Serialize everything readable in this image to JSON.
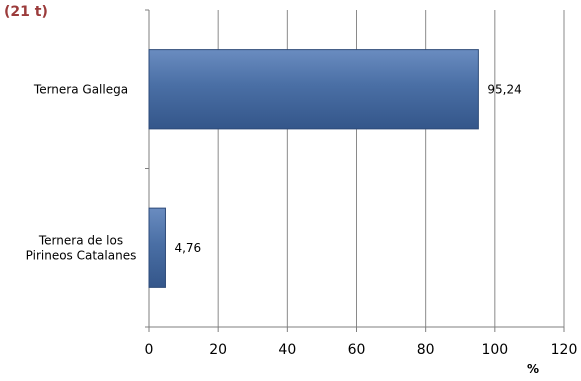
{
  "chart_data": {
    "type": "bar",
    "orientation": "horizontal",
    "title_fragment": "(21 t)",
    "categories": [
      "Ternera Gallega",
      "Ternera de los Pirineos Catalanes"
    ],
    "category_lines": [
      [
        "Ternera Gallega"
      ],
      [
        "Ternera de los",
        "Pirineos Catalanes"
      ]
    ],
    "values": [
      95.24,
      4.76
    ],
    "value_labels": [
      "95,24",
      "4,76"
    ],
    "xlim": [
      0,
      120
    ],
    "xticks": [
      0,
      20,
      40,
      60,
      80,
      100,
      120
    ],
    "xlabel": "%",
    "grid": "vertical",
    "bar_color": "#4a6fa5",
    "bar_stroke": "#2c4a78"
  }
}
